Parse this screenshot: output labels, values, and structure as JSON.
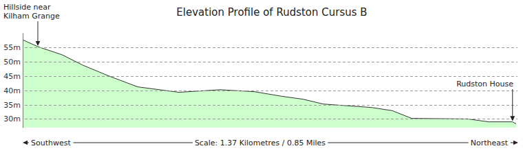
{
  "chart_data": {
    "type": "area",
    "title": "Elevation Profile of Rudston Cursus B",
    "x": [
      0,
      0.042,
      0.109,
      0.166,
      0.243,
      0.319,
      0.434,
      0.548,
      0.644,
      0.72,
      0.778,
      0.835,
      0.969,
      1.026,
      1.08,
      1.236,
      1.294,
      1.36,
      1.37
    ],
    "values": [
      57.6,
      55.2,
      52.4,
      48.8,
      44.8,
      41.2,
      39.3,
      40.2,
      39.5,
      37.9,
      36.9,
      35.2,
      34.0,
      32.9,
      30.2,
      30.0,
      29.0,
      29.0,
      28.3
    ],
    "color": "#ccffcc",
    "xlim": [
      0,
      1.37
    ],
    "ylim": [
      27,
      60
    ],
    "yticks": [
      {
        "value": 30,
        "label": "30m"
      },
      {
        "value": 35,
        "label": "35m"
      },
      {
        "value": 40,
        "label": "40m"
      },
      {
        "value": 45,
        "label": "45m"
      },
      {
        "value": 50,
        "label": "50m"
      },
      {
        "value": 55,
        "label": "55m"
      }
    ],
    "grid": true,
    "tick_labels": "y",
    "x_start_label": "Southwest",
    "x_end_label": "Northeast",
    "xlabel": "Scale: 1.37 Kilometres / 0.85 Miles",
    "annotations": [
      {
        "text": "Hillside near Kilham Grange",
        "x": 0.042
      },
      {
        "text": "Rudston House",
        "x": 1.36
      }
    ]
  }
}
